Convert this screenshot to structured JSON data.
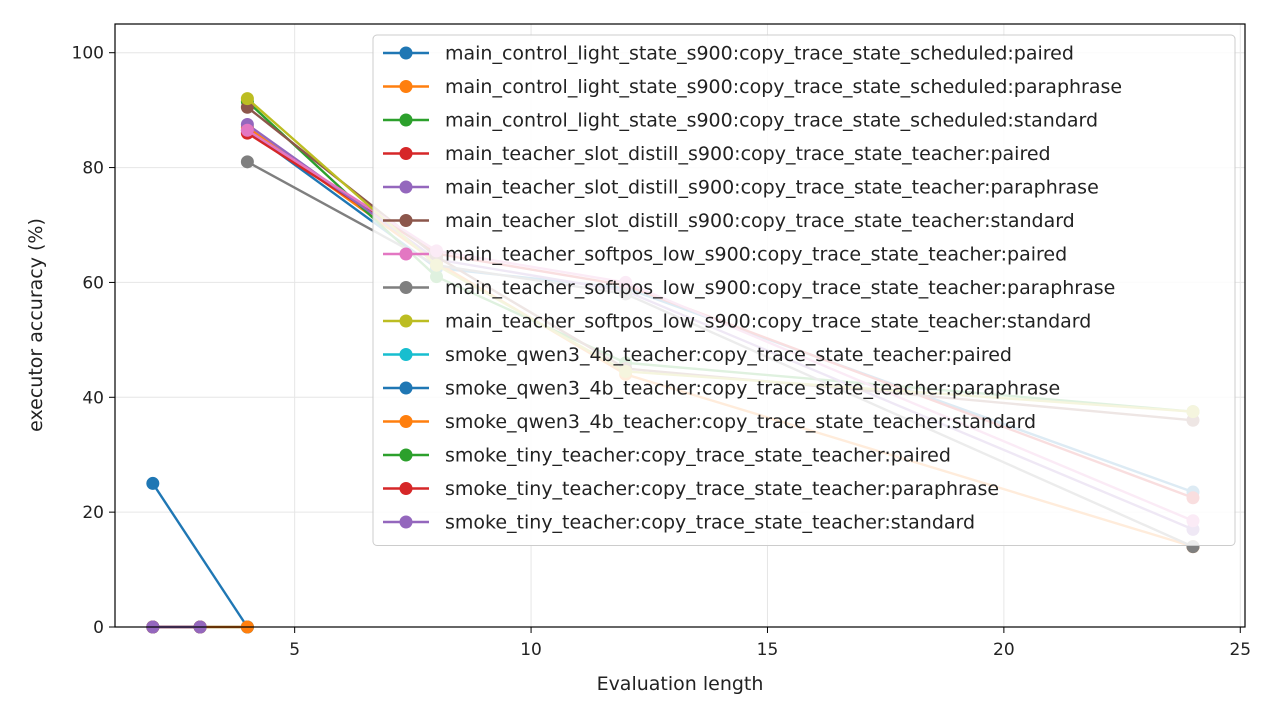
{
  "chart_data": {
    "type": "line",
    "xlabel": "Evaluation length",
    "ylabel": "executor accuracy (%)",
    "xlim": [
      1.2,
      25.1
    ],
    "ylim": [
      0,
      105
    ],
    "xticks": [
      5,
      10,
      15,
      20,
      25
    ],
    "yticks": [
      0,
      20,
      40,
      60,
      80,
      100
    ],
    "grid": true,
    "legend_position": "top-right",
    "series": [
      {
        "name": "main_control_light_state_s900:copy_trace_state_scheduled:paired",
        "color": "#1f77b4",
        "x": [
          4,
          8,
          12,
          24
        ],
        "y": [
          86.5,
          62.5,
          59.0,
          23.5
        ]
      },
      {
        "name": "main_control_light_state_s900:copy_trace_state_scheduled:paraphrase",
        "color": "#ff7f0e",
        "x": [
          4,
          8,
          12,
          24
        ],
        "y": [
          87.0,
          63.5,
          44.0,
          14.0
        ]
      },
      {
        "name": "main_control_light_state_s900:copy_trace_state_scheduled:standard",
        "color": "#2ca02c",
        "x": [
          4,
          8,
          12,
          24
        ],
        "y": [
          91.5,
          61.0,
          46.0,
          37.5
        ]
      },
      {
        "name": "main_teacher_slot_distill_s900:copy_trace_state_teacher:paired",
        "color": "#d62728",
        "x": [
          4,
          8,
          12,
          24
        ],
        "y": [
          86.0,
          65.0,
          59.5,
          22.5
        ]
      },
      {
        "name": "main_teacher_slot_distill_s900:copy_trace_state_teacher:paraphrase",
        "color": "#9467bd",
        "x": [
          4,
          8,
          12,
          24
        ],
        "y": [
          87.5,
          64.0,
          58.5,
          17.0
        ]
      },
      {
        "name": "main_teacher_slot_distill_s900:copy_trace_state_teacher:standard",
        "color": "#8c564b",
        "x": [
          4,
          8,
          12,
          24
        ],
        "y": [
          90.5,
          64.5,
          45.0,
          36.0
        ]
      },
      {
        "name": "main_teacher_softpos_low_s900:copy_trace_state_teacher:paired",
        "color": "#e377c2",
        "x": [
          4,
          8,
          12,
          24
        ],
        "y": [
          86.5,
          65.5,
          60.0,
          18.5
        ]
      },
      {
        "name": "main_teacher_softpos_low_s900:copy_trace_state_teacher:paraphrase",
        "color": "#7f7f7f",
        "x": [
          4,
          8,
          12,
          24
        ],
        "y": [
          81.0,
          63.0,
          58.0,
          14.0
        ]
      },
      {
        "name": "main_teacher_softpos_low_s900:copy_trace_state_teacher:standard",
        "color": "#bcbd22",
        "x": [
          4,
          8,
          12,
          24
        ],
        "y": [
          92.0,
          63.0,
          44.5,
          37.5
        ]
      },
      {
        "name": "smoke_qwen3_4b_teacher:copy_trace_state_teacher:paired",
        "color": "#17becf",
        "x": [
          2,
          3,
          4
        ],
        "y": [
          0,
          0,
          0
        ]
      },
      {
        "name": "smoke_qwen3_4b_teacher:copy_trace_state_teacher:paraphrase",
        "color": "#1f77b4",
        "x": [
          2,
          4
        ],
        "y": [
          25,
          0
        ]
      },
      {
        "name": "smoke_qwen3_4b_teacher:copy_trace_state_teacher:standard",
        "color": "#ff7f0e",
        "x": [
          2,
          3,
          4
        ],
        "y": [
          0,
          0,
          0
        ]
      },
      {
        "name": "smoke_tiny_teacher:copy_trace_state_teacher:paired",
        "color": "#2ca02c",
        "x": [
          2,
          3
        ],
        "y": [
          0,
          0
        ]
      },
      {
        "name": "smoke_tiny_teacher:copy_trace_state_teacher:paraphrase",
        "color": "#d62728",
        "x": [
          2,
          3
        ],
        "y": [
          0,
          0
        ]
      },
      {
        "name": "smoke_tiny_teacher:copy_trace_state_teacher:standard",
        "color": "#9467bd",
        "x": [
          2,
          3
        ],
        "y": [
          0,
          0
        ]
      }
    ]
  }
}
